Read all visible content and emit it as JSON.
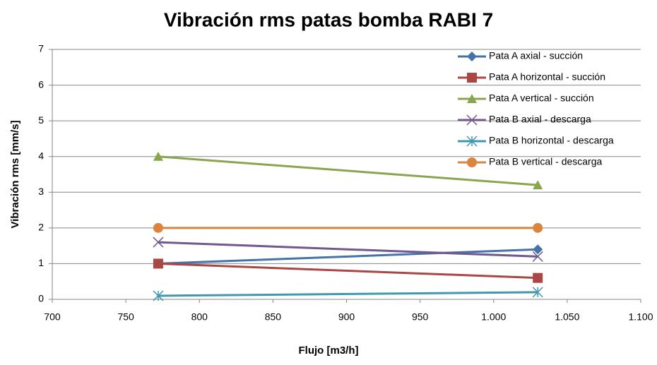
{
  "chart_data": {
    "type": "scatter",
    "title": "Vibración rms patas bomba RABI 7",
    "x_label": "Flujo [m3/h]",
    "y_label": "Vibración rms [mm/s]",
    "x": [
      772,
      1030
    ],
    "series": [
      {
        "name": "Pata A axial - succión",
        "color": "#4572A7",
        "marker": "diamond",
        "values": [
          1.0,
          1.4
        ]
      },
      {
        "name": "Pata A horizontal - succión",
        "color": "#AA4643",
        "marker": "square",
        "values": [
          1.0,
          0.6
        ]
      },
      {
        "name": "Pata A vertical - succión",
        "color": "#89A54E",
        "marker": "triangle",
        "values": [
          4.0,
          3.2
        ]
      },
      {
        "name": "Pata B axial - descarga",
        "color": "#71588F",
        "marker": "x",
        "values": [
          1.6,
          1.2
        ]
      },
      {
        "name": "Pata B horizontal - descarga",
        "color": "#4198AF",
        "marker": "star",
        "values": [
          0.1,
          0.2
        ]
      },
      {
        "name": "Pata B vertical - descarga",
        "color": "#DB843D",
        "marker": "circle",
        "values": [
          2.0,
          2.0
        ]
      }
    ],
    "xlim": [
      700,
      1100
    ],
    "xticks": [
      700,
      750,
      800,
      850,
      900,
      950,
      {
        "value": 1000,
        "label": "1.000"
      },
      {
        "value": 1050,
        "label": "1.050"
      },
      {
        "value": 1100,
        "label": "1.100"
      }
    ],
    "ylim": [
      0,
      7
    ],
    "yticks": [
      0,
      1,
      2,
      3,
      4,
      5,
      6,
      7
    ],
    "grid": true,
    "legend": "top-right"
  }
}
